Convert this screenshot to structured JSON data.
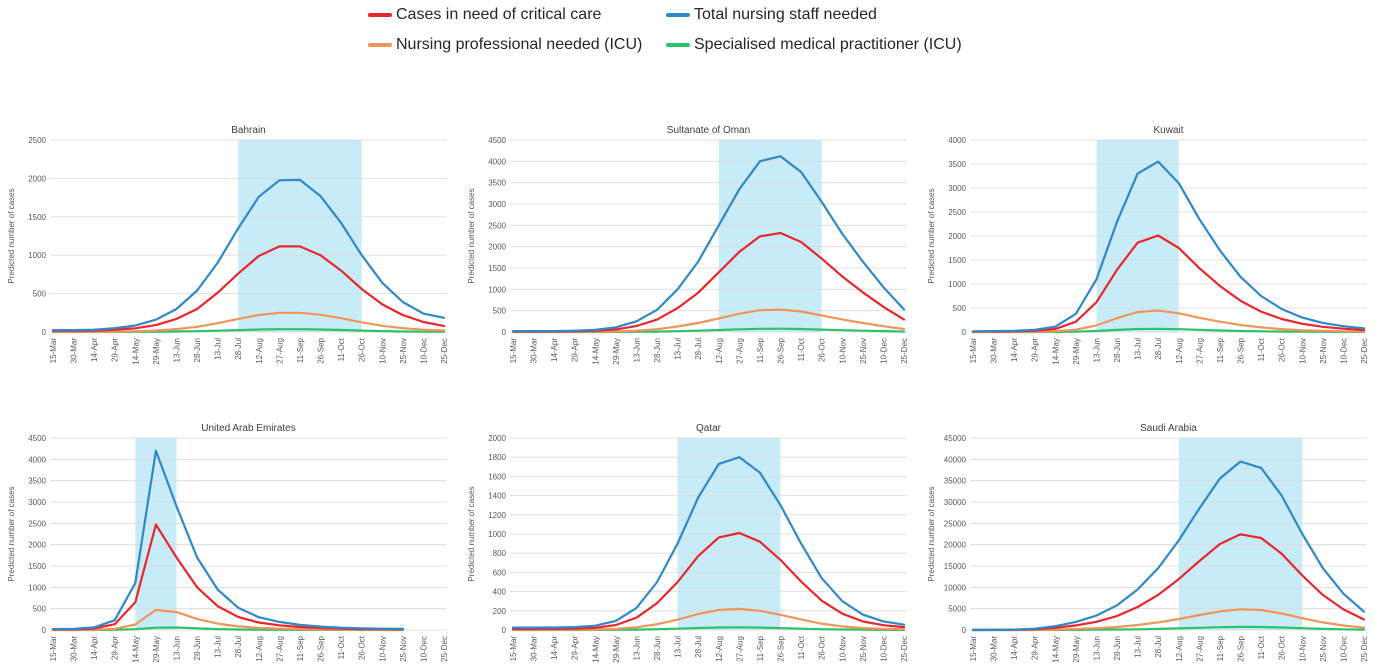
{
  "legend": {
    "critical": "Cases in need of critical care",
    "total": "Total nursing staff needed",
    "nursing": "Nursing professional needed (ICU)",
    "specialised": "Specialised medical practitioner (ICU)"
  },
  "colors": {
    "critical": "#e8262e",
    "total": "#2f88c9",
    "nursing": "#f0955a",
    "specialised": "#2cc26a",
    "peak_band": "#c8ebf8",
    "gridline": "#d9d9d9"
  },
  "chart_data": [
    {
      "type": "line",
      "title": "Bahrain",
      "ylabel": "Predicted number of cases",
      "x": [
        "15-Mar",
        "30-Mar",
        "14-Apr",
        "29-Apr",
        "14-May",
        "29-May",
        "13-Jun",
        "28-Jun",
        "13-Jul",
        "28-Jul",
        "12-Aug",
        "27-Aug",
        "11-Sep",
        "26-Sep",
        "11-Oct",
        "26-Oct",
        "10-Nov",
        "25-Nov",
        "10-Dec",
        "25-Dec"
      ],
      "ylim": [
        0,
        2500
      ],
      "yticks": [
        "0",
        "500",
        "1000",
        "1500",
        "2000",
        "2500"
      ],
      "peak_band": [
        "28-Jul",
        "26-Oct"
      ],
      "series": [
        {
          "name": "Total nursing staff needed",
          "key": "total",
          "values": [
            25,
            25,
            30,
            50,
            85,
            160,
            300,
            540,
            900,
            1350,
            1760,
            1975,
            1980,
            1770,
            1420,
            1000,
            640,
            390,
            240,
            185
          ]
        },
        {
          "name": "Cases in need of critical care",
          "key": "critical",
          "values": [
            15,
            15,
            18,
            28,
            48,
            90,
            170,
            300,
            510,
            760,
            990,
            1115,
            1115,
            1000,
            800,
            560,
            360,
            220,
            130,
            80
          ]
        },
        {
          "name": "Nursing professional needed (ICU)",
          "key": "nursing",
          "values": [
            3,
            3,
            4,
            6,
            10,
            20,
            38,
            68,
            115,
            170,
            222,
            250,
            250,
            225,
            180,
            126,
            81,
            50,
            30,
            20
          ]
        },
        {
          "name": "Specialised medical practitioner (ICU)",
          "key": "specialised",
          "values": [
            0,
            0,
            1,
            1,
            2,
            3,
            6,
            10,
            17,
            25,
            32,
            36,
            36,
            32,
            26,
            18,
            12,
            7,
            4,
            3
          ]
        }
      ]
    },
    {
      "type": "line",
      "title": "Sultanate of Oman",
      "ylabel": "Predicted number of cases",
      "x": [
        "15-Mar",
        "30-Mar",
        "14-Apr",
        "29-Apr",
        "14-May",
        "29-May",
        "13-Jun",
        "28-Jun",
        "13-Jul",
        "28-Jul",
        "12-Aug",
        "27-Aug",
        "11-Sep",
        "26-Sep",
        "11-Oct",
        "26-Oct",
        "10-Nov",
        "25-Nov",
        "10-Dec",
        "25-Dec"
      ],
      "ylim": [
        0,
        4500
      ],
      "yticks": [
        "0",
        "500",
        "1000",
        "1500",
        "2000",
        "2500",
        "3000",
        "3500",
        "4000",
        "4500"
      ],
      "peak_band": [
        "12-Aug",
        "26-Oct"
      ],
      "series": [
        {
          "name": "Total nursing staff needed",
          "key": "total",
          "values": [
            20,
            20,
            22,
            30,
            50,
            110,
            250,
            520,
            1000,
            1650,
            2500,
            3350,
            4000,
            4120,
            3750,
            3050,
            2300,
            1650,
            1050,
            530
          ]
        },
        {
          "name": "Cases in need of critical care",
          "key": "critical",
          "values": [
            10,
            10,
            12,
            17,
            28,
            60,
            140,
            290,
            560,
            920,
            1400,
            1880,
            2240,
            2320,
            2110,
            1720,
            1300,
            930,
            590,
            290
          ]
        },
        {
          "name": "Nursing professional needed (ICU)",
          "key": "nursing",
          "values": [
            2,
            2,
            3,
            4,
            6,
            14,
            31,
            66,
            128,
            210,
            318,
            428,
            510,
            525,
            480,
            390,
            295,
            210,
            135,
            70
          ]
        },
        {
          "name": "Specialised medical practitioner (ICU)",
          "key": "specialised",
          "values": [
            0,
            0,
            0,
            1,
            1,
            2,
            5,
            10,
            19,
            31,
            47,
            63,
            75,
            77,
            70,
            57,
            43,
            31,
            20,
            10
          ]
        }
      ]
    },
    {
      "type": "line",
      "title": "Kuwait",
      "ylabel": "Predicted number of cases",
      "x": [
        "15-Mar",
        "30-Mar",
        "14-Apr",
        "29-Apr",
        "14-May",
        "29-May",
        "13-Jun",
        "28-Jun",
        "13-Jul",
        "28-Jul",
        "12-Aug",
        "27-Aug",
        "11-Sep",
        "26-Sep",
        "11-Oct",
        "26-Oct",
        "10-Nov",
        "25-Nov",
        "10-Dec",
        "25-Dec"
      ],
      "ylim": [
        0,
        4000
      ],
      "yticks": [
        "0",
        "500",
        "1000",
        "1500",
        "2000",
        "2500",
        "3000",
        "3500",
        "4000"
      ],
      "peak_band": [
        "13-Jun",
        "12-Aug"
      ],
      "series": [
        {
          "name": "Total nursing staff needed",
          "key": "total",
          "values": [
            15,
            18,
            25,
            45,
            110,
            380,
            1100,
            2300,
            3300,
            3550,
            3100,
            2350,
            1700,
            1150,
            750,
            480,
            300,
            190,
            120,
            75
          ]
        },
        {
          "name": "Cases in need of critical care",
          "key": "critical",
          "values": [
            8,
            10,
            14,
            25,
            62,
            215,
            620,
            1300,
            1860,
            2010,
            1750,
            1330,
            960,
            650,
            425,
            270,
            170,
            108,
            68,
            42
          ]
        },
        {
          "name": "Nursing professional needed (ICU)",
          "key": "nursing",
          "values": [
            2,
            2,
            3,
            6,
            14,
            48,
            138,
            290,
            415,
            448,
            390,
            296,
            214,
            145,
            95,
            60,
            38,
            24,
            15,
            9
          ]
        },
        {
          "name": "Specialised medical practitioner (ICU)",
          "key": "specialised",
          "values": [
            0,
            0,
            0,
            1,
            2,
            7,
            20,
            43,
            62,
            66,
            58,
            44,
            32,
            21,
            14,
            9,
            6,
            4,
            2,
            1
          ]
        }
      ]
    },
    {
      "type": "line",
      "title": "United Arab Emirates",
      "ylabel": "Predicted number of cases",
      "x": [
        "15-Mar",
        "30-Mar",
        "14-Apr",
        "29-Apr",
        "14-May",
        "29-May",
        "13-Jun",
        "28-Jun",
        "13-Jul",
        "28-Jul",
        "12-Aug",
        "27-Aug",
        "11-Sep",
        "26-Sep",
        "11-Oct",
        "26-Oct",
        "10-Nov",
        "25-Nov",
        "10-Dec",
        "25-Dec"
      ],
      "ylim": [
        0,
        4500
      ],
      "yticks": [
        "0",
        "500",
        "1000",
        "1500",
        "2000",
        "2500",
        "3000",
        "3500",
        "4000",
        "4500"
      ],
      "peak_band": [
        "14-May",
        "13-Jun"
      ],
      "series": [
        {
          "name": "Total nursing staff needed",
          "key": "total",
          "values": [
            20,
            25,
            60,
            230,
            1100,
            4200,
            2900,
            1700,
            950,
            520,
            300,
            190,
            120,
            80,
            55,
            40,
            30,
            25,
            null,
            null
          ]
        },
        {
          "name": "Cases in need of critical care",
          "key": "critical",
          "values": [
            12,
            15,
            35,
            135,
            650,
            2470,
            1700,
            1000,
            560,
            305,
            175,
            110,
            70,
            47,
            32,
            24,
            18,
            15,
            null,
            null
          ]
        },
        {
          "name": "Nursing professional needed (ICU)",
          "key": "nursing",
          "values": [
            3,
            3,
            8,
            28,
            130,
            470,
            420,
            260,
            150,
            85,
            50,
            32,
            21,
            14,
            10,
            7,
            5,
            4,
            null,
            null
          ]
        },
        {
          "name": "Specialised medical practitioner (ICU)",
          "key": "specialised",
          "values": [
            0,
            0,
            1,
            4,
            18,
            55,
            58,
            37,
            22,
            12,
            7,
            5,
            3,
            2,
            2,
            1,
            1,
            1,
            null,
            null
          ]
        }
      ]
    },
    {
      "type": "line",
      "title": "Qatar",
      "ylabel": "Predicted number of cases",
      "x": [
        "15-Mar",
        "30-Mar",
        "14-Apr",
        "29-Apr",
        "14-May",
        "29-May",
        "13-Jun",
        "28-Jun",
        "13-Jul",
        "28-Jul",
        "12-Aug",
        "27-Aug",
        "11-Sep",
        "26-Sep",
        "11-Oct",
        "26-Oct",
        "10-Nov",
        "25-Nov",
        "10-Dec",
        "25-Dec"
      ],
      "ylim": [
        0,
        2000
      ],
      "yticks": [
        "0",
        "200",
        "400",
        "600",
        "800",
        "1000",
        "1200",
        "1400",
        "1600",
        "1800",
        "2000"
      ],
      "peak_band": [
        "13-Jul",
        "26-Sep"
      ],
      "series": [
        {
          "name": "Total nursing staff needed",
          "key": "total",
          "values": [
            25,
            25,
            26,
            30,
            45,
            95,
            230,
            500,
            900,
            1380,
            1730,
            1800,
            1640,
            1300,
            900,
            540,
            300,
            160,
            90,
            55
          ]
        },
        {
          "name": "Cases in need of critical care",
          "key": "critical",
          "values": [
            10,
            10,
            11,
            14,
            23,
            52,
            128,
            280,
            500,
            770,
            965,
            1010,
            920,
            730,
            505,
            305,
            170,
            90,
            50,
            30
          ]
        },
        {
          "name": "Nursing professional needed (ICU)",
          "key": "nursing",
          "values": [
            2,
            2,
            2,
            3,
            5,
            11,
            28,
            60,
            108,
            167,
            209,
            220,
            200,
            158,
            110,
            66,
            37,
            20,
            11,
            7
          ]
        },
        {
          "name": "Specialised medical practitioner (ICU)",
          "key": "specialised",
          "values": [
            0,
            0,
            0,
            0,
            1,
            2,
            4,
            8,
            14,
            21,
            26,
            28,
            25,
            20,
            14,
            8,
            5,
            3,
            1,
            1
          ]
        }
      ]
    },
    {
      "type": "line",
      "title": "Saudi Arabia",
      "ylabel": "Predicted number of cases",
      "x": [
        "15-Mar",
        "30-Mar",
        "14-Apr",
        "29-Apr",
        "14-May",
        "29-May",
        "13-Jun",
        "28-Jun",
        "13-Jul",
        "28-Jul",
        "12-Aug",
        "27-Aug",
        "11-Sep",
        "26-Sep",
        "11-Oct",
        "26-Oct",
        "10-Nov",
        "25-Nov",
        "10-Dec",
        "25-Dec"
      ],
      "ylim": [
        0,
        45000
      ],
      "yticks": [
        "0",
        "5000",
        "10000",
        "15000",
        "20000",
        "25000",
        "30000",
        "35000",
        "40000",
        "45000"
      ],
      "peak_band": [
        "12-Aug",
        "10-Nov"
      ],
      "series": [
        {
          "name": "Total nursing staff needed",
          "key": "total",
          "values": [
            20,
            30,
            90,
            300,
            900,
            1900,
            3400,
            5800,
            9500,
            14500,
            21000,
            28500,
            35500,
            39500,
            38000,
            31500,
            22500,
            14500,
            8500,
            4300
          ]
        },
        {
          "name": "Cases in need of critical care",
          "key": "critical",
          "values": [
            10,
            17,
            50,
            170,
            510,
            1080,
            1930,
            3290,
            5390,
            8230,
            11920,
            16180,
            20150,
            22420,
            21570,
            17880,
            12770,
            8230,
            4820,
            2450
          ]
        },
        {
          "name": "Nursing professional needed (ICU)",
          "key": "nursing",
          "values": [
            2,
            4,
            11,
            37,
            111,
            234,
            418,
            714,
            1170,
            1785,
            2585,
            3508,
            4370,
            4862,
            4677,
            3877,
            2770,
            1785,
            1046,
            530
          ]
        },
        {
          "name": "Specialised medical practitioner (ICU)",
          "key": "specialised",
          "values": [
            0,
            1,
            2,
            6,
            17,
            35,
            63,
            107,
            175,
            268,
            388,
            527,
            656,
            730,
            702,
            582,
            416,
            268,
            157,
            80
          ]
        }
      ]
    }
  ]
}
